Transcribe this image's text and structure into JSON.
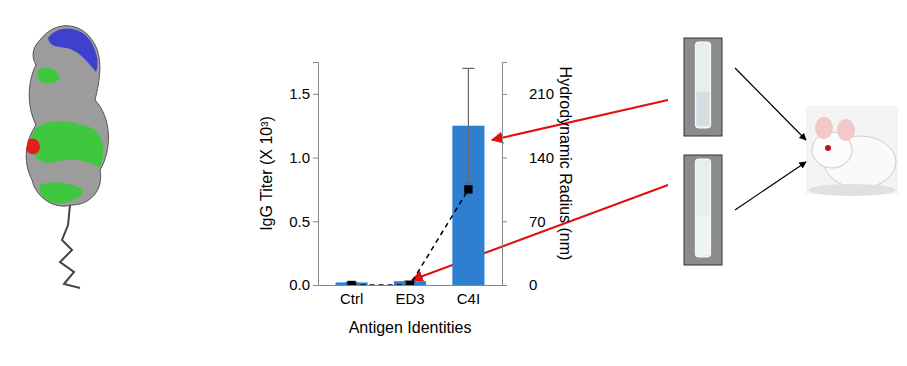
{
  "chart_data": {
    "type": "bar",
    "categories": [
      "Ctrl",
      "ED3",
      "C4I"
    ],
    "x_label": "Antigen Identities",
    "y_label": "IgG Titer (X 10³)",
    "y2_label": "Hydrodynamic Radius (nm)",
    "ylim": [
      0,
      1.75
    ],
    "yticks": [
      {
        "value": 0,
        "label": "0.0"
      },
      {
        "value": 0.5,
        "label": "0.5"
      },
      {
        "value": 1,
        "label": "1.0"
      },
      {
        "value": 1.5,
        "label": "1.5"
      }
    ],
    "y2lim": [
      0,
      245
    ],
    "y2ticks": [
      0,
      70,
      140,
      210
    ],
    "series": [
      {
        "type": "bar",
        "color": "#2f7fd1",
        "values": [
          0.02,
          0.03,
          1.25
        ],
        "errors": [
          0,
          0,
          0.45
        ]
      },
      {
        "type": "line",
        "axis": "y2",
        "color": "#000000",
        "marker": "square",
        "line_style": "dashed",
        "values": [
          0,
          0,
          105
        ]
      }
    ]
  }
}
